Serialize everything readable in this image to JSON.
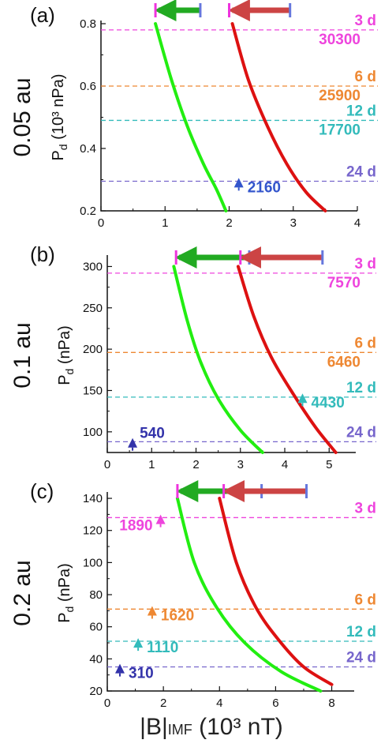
{
  "figure": {
    "xlabel_main": "|B|",
    "xlabel_sub": "IMF",
    "xlabel_units": " (10³ nT)"
  },
  "colors": {
    "green": "#22ee11",
    "red": "#dd1111",
    "d3": "#ee44dd",
    "d6": "#ee8833",
    "d12": "#33bbbb",
    "d24": "#7766cc",
    "t_blue": "#3355cc",
    "t_navy": "#3333aa",
    "arrow_green": "#22aa22",
    "arrow_red": "#cc4444",
    "cap_magenta": "#ee33dd",
    "cap_blue": "#6677dd"
  },
  "chart_data": [
    {
      "panel": "(a)",
      "distance": "0.05 au",
      "type": "line",
      "ylabel_main": "P",
      "ylabel_sub": "d",
      "ylabel_units": " (10³ nPa)",
      "xlim": [
        0,
        4
      ],
      "ylim": [
        0.2,
        0.8
      ],
      "xticks": [
        "0",
        "1",
        "2",
        "3",
        "4"
      ],
      "yticks": [
        "0.2",
        "0.4",
        "0.6",
        "0.8"
      ],
      "series": [
        {
          "color": "green",
          "x": [
            0.85,
            1.1,
            1.35,
            1.6,
            1.8,
            1.95
          ],
          "y": [
            0.8,
            0.62,
            0.47,
            0.35,
            0.27,
            0.2
          ]
        },
        {
          "color": "red",
          "x": [
            2.05,
            2.3,
            2.6,
            2.9,
            3.2,
            3.5
          ],
          "y": [
            0.8,
            0.62,
            0.47,
            0.35,
            0.26,
            0.2
          ]
        }
      ],
      "hlines": [
        {
          "y": 0.78,
          "color": "d3",
          "label": "3 d",
          "value": "30300"
        },
        {
          "y": 0.6,
          "color": "d6",
          "label": "6 d",
          "value": "25900"
        },
        {
          "y": 0.49,
          "color": "d12",
          "label": "12 d",
          "value": "17700"
        },
        {
          "y": 0.295,
          "color": "d24",
          "label": "24 d",
          "value": ""
        }
      ],
      "triangles": [
        {
          "x": 2.15,
          "y": 0.275,
          "color": "t_blue",
          "label": "2160",
          "side": "right"
        }
      ],
      "arrows": [
        {
          "from": 1.55,
          "to": 0.85,
          "color": "arrow_green"
        },
        {
          "from": 2.95,
          "to": 2.0,
          "color": "arrow_red"
        }
      ]
    },
    {
      "panel": "(b)",
      "distance": "0.1 au",
      "type": "line",
      "ylabel_main": "P",
      "ylabel_sub": "d",
      "ylabel_units": " (nPa)",
      "xlim": [
        0,
        5.6
      ],
      "ylim": [
        75,
        310
      ],
      "xticks": [
        "0",
        "1",
        "2",
        "3",
        "4",
        "5"
      ],
      "yticks": [
        "100",
        "150",
        "200",
        "250",
        "300"
      ],
      "series": [
        {
          "color": "green",
          "x": [
            1.5,
            1.8,
            2.1,
            2.5,
            3.0,
            3.5
          ],
          "y": [
            300,
            235,
            185,
            140,
            102,
            75
          ]
        },
        {
          "color": "red",
          "x": [
            2.95,
            3.3,
            3.7,
            4.2,
            4.7,
            5.15
          ],
          "y": [
            300,
            240,
            190,
            145,
            105,
            75
          ]
        }
      ],
      "hlines": [
        {
          "y": 292,
          "color": "d3",
          "label": "3 d",
          "value": "7570"
        },
        {
          "y": 196,
          "color": "d6",
          "label": "6 d",
          "value": "6460"
        },
        {
          "y": 142,
          "color": "d12",
          "label": "12 d",
          "value": ""
        },
        {
          "y": 88,
          "color": "d24",
          "label": "24 d",
          "value": ""
        }
      ],
      "triangles": [
        {
          "x": 4.4,
          "y": 135,
          "color": "d12",
          "label": "4430",
          "side": "right"
        },
        {
          "x": 0.57,
          "y": 81,
          "color": "t_navy",
          "label": "540",
          "side": "above"
        }
      ],
      "arrows": [
        {
          "from": 3.2,
          "to": 1.55,
          "color": "arrow_green"
        },
        {
          "from": 4.85,
          "to": 3.0,
          "color": "arrow_red"
        }
      ]
    },
    {
      "panel": "(c)",
      "distance": "0.2 au",
      "type": "line",
      "ylabel_main": "P",
      "ylabel_sub": "d",
      "ylabel_units": " (nPa)",
      "xlim": [
        0,
        8.8
      ],
      "ylim": [
        20,
        142
      ],
      "xticks": [
        "0",
        "2",
        "4",
        "6",
        "8"
      ],
      "yticks": [
        "20",
        "40",
        "60",
        "80",
        "100",
        "120",
        "140"
      ],
      "series": [
        {
          "color": "green",
          "x": [
            2.5,
            3.1,
            3.9,
            4.9,
            6.2,
            7.6
          ],
          "y": [
            140,
            100,
            72,
            50,
            32,
            20
          ]
        },
        {
          "color": "red",
          "x": [
            4.0,
            4.6,
            5.3,
            6.1,
            7.0,
            8.0
          ],
          "y": [
            140,
            100,
            72,
            52,
            35,
            24
          ]
        }
      ],
      "hlines": [
        {
          "y": 128,
          "color": "d3",
          "label": "3 d",
          "value": ""
        },
        {
          "y": 71,
          "color": "d6",
          "label": "6 d",
          "value": ""
        },
        {
          "y": 51,
          "color": "d12",
          "label": "12 d",
          "value": ""
        },
        {
          "y": 35,
          "color": "d24",
          "label": "24 d",
          "value": ""
        }
      ],
      "triangles": [
        {
          "x": 1.9,
          "y": 124,
          "color": "d3",
          "label": "1890",
          "side": "left"
        },
        {
          "x": 1.6,
          "y": 67,
          "color": "d6",
          "label": "1620",
          "side": "right"
        },
        {
          "x": 1.1,
          "y": 47,
          "color": "d12",
          "label": "1110",
          "side": "right"
        },
        {
          "x": 0.45,
          "y": 31,
          "color": "t_navy",
          "label": "310",
          "side": "right"
        }
      ],
      "arrows": [
        {
          "from": 5.5,
          "to": 2.5,
          "color": "arrow_green"
        },
        {
          "from": 7.1,
          "to": 4.15,
          "color": "arrow_red"
        }
      ]
    }
  ]
}
